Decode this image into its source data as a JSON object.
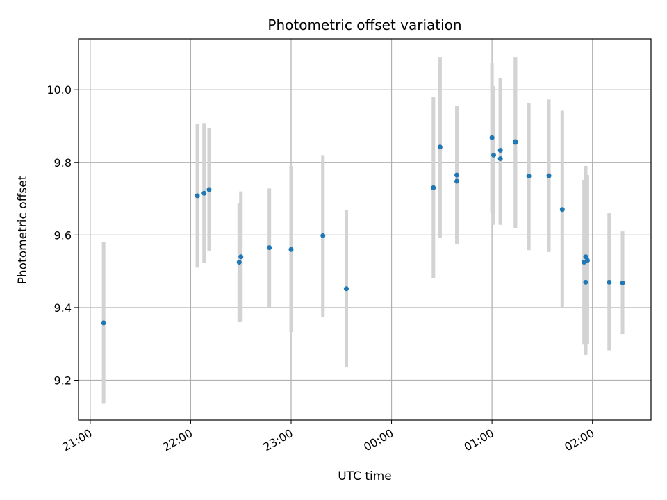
{
  "chart_data": {
    "type": "scatter",
    "title": "Photometric offset variation",
    "xlabel": "UTC time",
    "ylabel": "Photometric offset",
    "x_axis_type": "time",
    "xlim": [
      "20:53",
      "02:35"
    ],
    "ylim": [
      9.09,
      10.14
    ],
    "x_ticks": [
      "21:00",
      "22:00",
      "23:00",
      "00:00",
      "01:00",
      "02:00"
    ],
    "y_ticks": [
      9.2,
      9.4,
      9.6,
      9.8,
      10.0
    ],
    "y_tick_labels": [
      "9.2",
      "9.4",
      "9.6",
      "9.8",
      "10.0"
    ],
    "grid": true,
    "marker_color": "#1f77b4",
    "errorbar_color": "#d3d3d3",
    "points": [
      {
        "x": "21:08",
        "y": 9.358,
        "ylow": 9.135,
        "yhigh": 9.58
      },
      {
        "x": "22:04",
        "y": 9.708,
        "ylow": 9.51,
        "yhigh": 9.905
      },
      {
        "x": "22:08",
        "y": 9.715,
        "ylow": 9.523,
        "yhigh": 9.908
      },
      {
        "x": "22:11",
        "y": 9.725,
        "ylow": 9.555,
        "yhigh": 9.895
      },
      {
        "x": "22:29",
        "y": 9.525,
        "ylow": 9.36,
        "yhigh": 9.688
      },
      {
        "x": "22:30",
        "y": 9.54,
        "ylow": 9.362,
        "yhigh": 9.72
      },
      {
        "x": "22:47",
        "y": 9.565,
        "ylow": 9.4,
        "yhigh": 9.728
      },
      {
        "x": "23:00",
        "y": 9.56,
        "ylow": 9.333,
        "yhigh": 9.79
      },
      {
        "x": "23:19",
        "y": 9.598,
        "ylow": 9.375,
        "yhigh": 9.82
      },
      {
        "x": "23:33",
        "y": 9.452,
        "ylow": 9.235,
        "yhigh": 9.668
      },
      {
        "x": "00:25",
        "y": 9.73,
        "ylow": 9.482,
        "yhigh": 9.98
      },
      {
        "x": "00:29",
        "y": 9.842,
        "ylow": 9.592,
        "yhigh": 10.09
      },
      {
        "x": "00:39",
        "y": 9.748,
        "ylow": 9.575,
        "yhigh": 9.955
      },
      {
        "x": "00:39",
        "y": 9.765,
        "ylow": 9.575,
        "yhigh": 9.955
      },
      {
        "x": "01:00",
        "y": 9.868,
        "ylow": 9.662,
        "yhigh": 10.075
      },
      {
        "x": "01:01",
        "y": 9.82,
        "ylow": 9.628,
        "yhigh": 10.01
      },
      {
        "x": "01:05",
        "y": 9.81,
        "ylow": 9.628,
        "yhigh": 10.032
      },
      {
        "x": "01:05",
        "y": 9.833,
        "ylow": 9.632,
        "yhigh": 10.032
      },
      {
        "x": "01:14",
        "y": 9.855,
        "ylow": 9.618,
        "yhigh": 10.09
      },
      {
        "x": "01:14",
        "y": 9.857,
        "ylow": 9.625,
        "yhigh": 10.085
      },
      {
        "x": "01:22",
        "y": 9.762,
        "ylow": 9.558,
        "yhigh": 9.963
      },
      {
        "x": "01:34",
        "y": 9.763,
        "ylow": 9.553,
        "yhigh": 9.973
      },
      {
        "x": "01:42",
        "y": 9.67,
        "ylow": 9.4,
        "yhigh": 9.942
      },
      {
        "x": "01:55",
        "y": 9.525,
        "ylow": 9.298,
        "yhigh": 9.752
      },
      {
        "x": "01:56",
        "y": 9.54,
        "ylow": 9.27,
        "yhigh": 9.79
      },
      {
        "x": "01:56",
        "y": 9.47,
        "ylow": 9.285,
        "yhigh": 9.755
      },
      {
        "x": "01:57",
        "y": 9.53,
        "ylow": 9.3,
        "yhigh": 9.765
      },
      {
        "x": "02:10",
        "y": 9.47,
        "ylow": 9.282,
        "yhigh": 9.66
      },
      {
        "x": "02:18",
        "y": 9.468,
        "ylow": 9.327,
        "yhigh": 9.61
      }
    ]
  }
}
